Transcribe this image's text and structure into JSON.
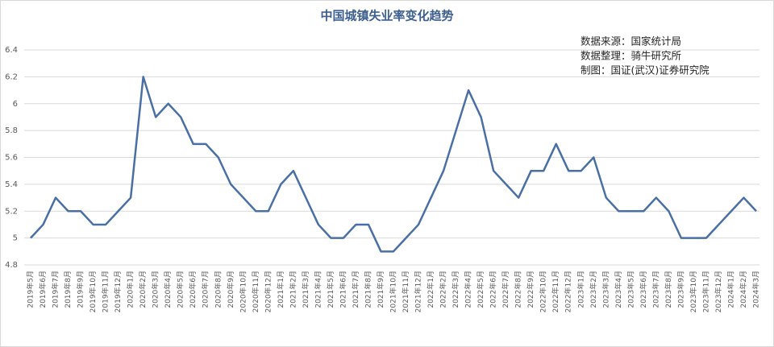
{
  "chart_data": {
    "type": "line",
    "title": "中国城镇失业率变化趋势",
    "annotations": [
      "数据来源：国家统计局",
      "数据整理：骑牛研究所",
      "制图：国证(武汉)证券研究院"
    ],
    "categories": [
      "2019年5月",
      "2019年6月",
      "2019年7月",
      "2019年8月",
      "2019年9月",
      "2019年10月",
      "2019年11月",
      "2019年12月",
      "2020年1月",
      "2020年2月",
      "2020年3月",
      "2020年4月",
      "2020年5月",
      "2020年6月",
      "2020年7月",
      "2020年8月",
      "2020年9月",
      "2020年10月",
      "2020年11月",
      "2020年12月",
      "2021年1月",
      "2021年2月",
      "2021年3月",
      "2021年4月",
      "2021年5月",
      "2021年6月",
      "2021年7月",
      "2021年8月",
      "2021年9月",
      "2021年10月",
      "2021年11月",
      "2021年12月",
      "2022年1月",
      "2022年2月",
      "2022年3月",
      "2022年4月",
      "2022年5月",
      "2022年6月",
      "2022年7月",
      "2022年8月",
      "2022年9月",
      "2022年10月",
      "2022年11月",
      "2022年12月",
      "2023年1月",
      "2023年2月",
      "2023年3月",
      "2023年4月",
      "2023年5月",
      "2023年6月",
      "2023年7月",
      "2023年8月",
      "2023年9月",
      "2023年10月",
      "2023年11月",
      "2023年12月",
      "2024年1月",
      "2024年2月",
      "2024年3月"
    ],
    "series": [
      {
        "color": "#4a6fa5",
        "values": [
          5.0,
          5.1,
          5.3,
          5.2,
          5.2,
          5.1,
          5.1,
          5.2,
          5.3,
          6.2,
          5.9,
          6.0,
          5.9,
          5.7,
          5.7,
          5.6,
          5.4,
          5.3,
          5.2,
          5.2,
          5.4,
          5.5,
          5.3,
          5.1,
          5.0,
          5.0,
          5.1,
          5.1,
          4.9,
          4.9,
          5.0,
          5.1,
          5.3,
          5.5,
          5.8,
          6.1,
          5.9,
          5.5,
          5.4,
          5.3,
          5.5,
          5.5,
          5.7,
          5.5,
          5.5,
          5.6,
          5.3,
          5.2,
          5.2,
          5.2,
          5.3,
          5.2,
          5.0,
          5.0,
          5.0,
          5.1,
          5.2,
          5.3,
          5.2
        ]
      }
    ],
    "ylim": [
      4.8,
      6.4
    ],
    "yticks": [
      4.8,
      5,
      5.2,
      5.4,
      5.6,
      5.8,
      6,
      6.2,
      6.4
    ],
    "grid": true
  }
}
